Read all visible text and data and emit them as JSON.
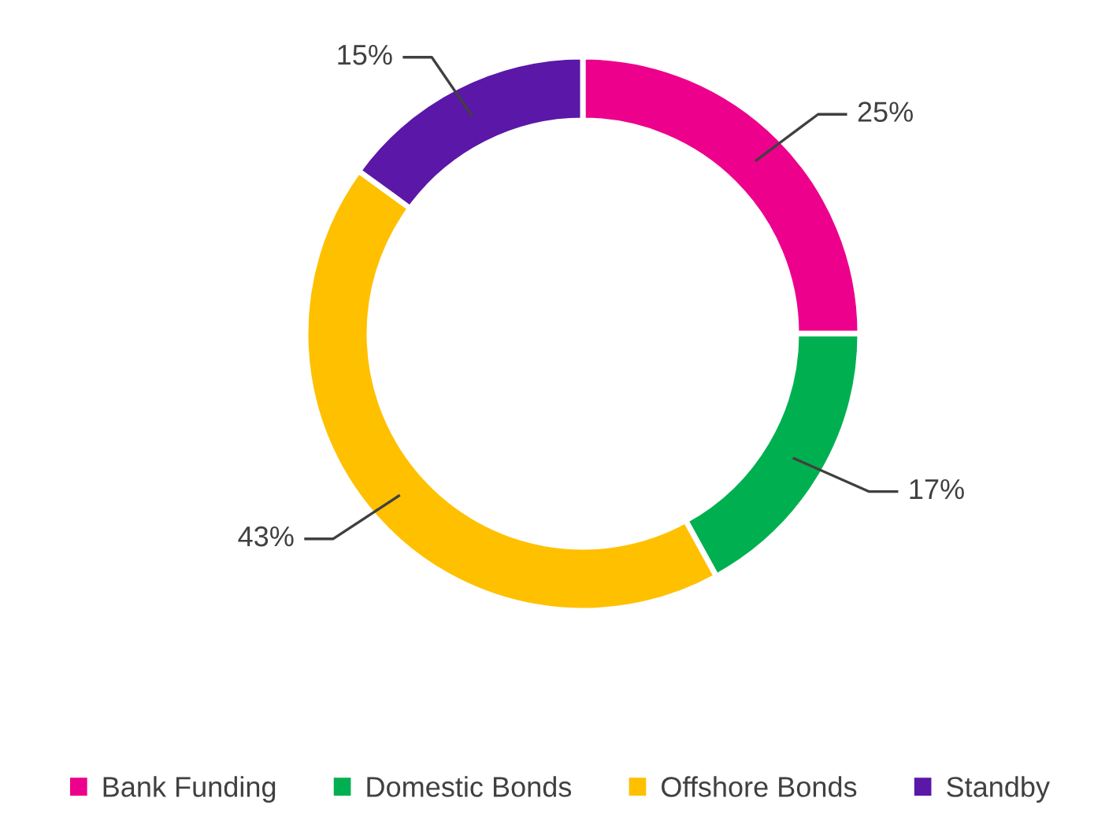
{
  "chart_data": {
    "type": "donut",
    "categories": [
      "Bank Funding",
      "Domestic Bonds",
      "Offshore Bonds",
      "Standby"
    ],
    "values": [
      25,
      17,
      43,
      15
    ],
    "value_labels": [
      "25%",
      "17%",
      "43%",
      "15%"
    ],
    "colors": [
      "#ec008c",
      "#00b050",
      "#ffc000",
      "#5b17a8"
    ],
    "legend": "bottom"
  }
}
